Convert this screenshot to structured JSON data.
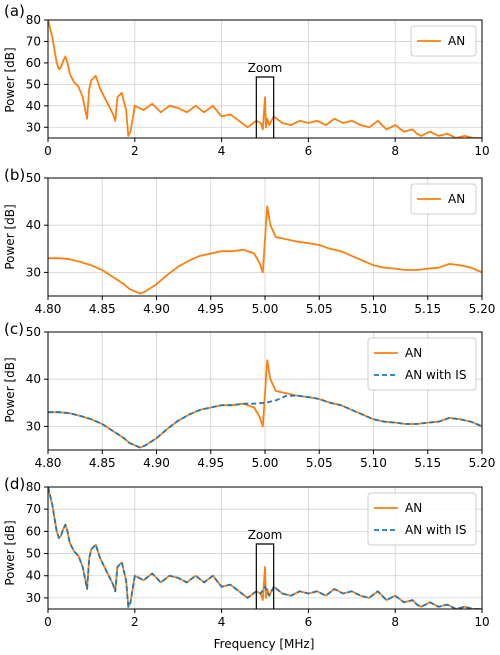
{
  "colors": {
    "an": "#ff7f0e",
    "an_with_is": "#1f77b4",
    "grid": "#d0d0d0",
    "frame": "#000000"
  },
  "chart_data": [
    {
      "panel": "(a)",
      "type": "line",
      "ylabel": "Power [dB]",
      "xlim": [
        0,
        10
      ],
      "ylim": [
        25,
        80
      ],
      "xticks": [
        0,
        2,
        4,
        6,
        8,
        10
      ],
      "xtick_labels": [
        "0",
        "2",
        "4",
        "6",
        "8",
        "10"
      ],
      "yticks": [
        30,
        40,
        50,
        60,
        70,
        80
      ],
      "ytick_labels": [
        "30",
        "40",
        "50",
        "60",
        "70",
        "80"
      ],
      "grid": true,
      "legend": "top-right",
      "annotation": {
        "text": "Zoom",
        "x_range": [
          4.8,
          5.2
        ]
      },
      "series": [
        {
          "name": "AN",
          "style": "solid",
          "color": "#ff7f0e",
          "x": [
            0,
            0.05,
            0.1,
            0.15,
            0.2,
            0.25,
            0.3,
            0.35,
            0.4,
            0.45,
            0.5,
            0.6,
            0.7,
            0.8,
            0.9,
            0.95,
            1.0,
            1.1,
            1.2,
            1.3,
            1.4,
            1.5,
            1.55,
            1.6,
            1.7,
            1.8,
            1.85,
            1.9,
            2.0,
            2.2,
            2.4,
            2.6,
            2.8,
            3.0,
            3.2,
            3.4,
            3.6,
            3.8,
            4.0,
            4.2,
            4.4,
            4.6,
            4.8,
            4.9,
            4.95,
            5.0,
            5.02,
            5.05,
            5.1,
            5.2,
            5.4,
            5.6,
            5.8,
            6.0,
            6.2,
            6.4,
            6.6,
            6.8,
            7.0,
            7.2,
            7.4,
            7.6,
            7.8,
            8.0,
            8.2,
            8.4,
            8.5,
            8.6,
            8.8,
            9.0,
            9.2,
            9.4,
            9.6,
            9.8,
            10.0
          ],
          "y": [
            80,
            76,
            72,
            66,
            60,
            57,
            58,
            61,
            63,
            60,
            55,
            51,
            49,
            44,
            34,
            48,
            52,
            54,
            48,
            44,
            40,
            36,
            33,
            44,
            46,
            38,
            26,
            28,
            40,
            38,
            41,
            37,
            40,
            39,
            37,
            40,
            37,
            40,
            35,
            36,
            33,
            30,
            33,
            32,
            29,
            44,
            30,
            34,
            31,
            35,
            32,
            31,
            33,
            32,
            33,
            31,
            34,
            32,
            33,
            31,
            30,
            33,
            29,
            31,
            28,
            29,
            27,
            26,
            28,
            26,
            27,
            25,
            26,
            25,
            25
          ]
        }
      ]
    },
    {
      "panel": "(b)",
      "type": "line",
      "ylabel": "Power [dB]",
      "xlim": [
        4.8,
        5.2
      ],
      "ylim": [
        25,
        50
      ],
      "xticks": [
        4.8,
        4.85,
        4.9,
        4.95,
        5.0,
        5.05,
        5.1,
        5.15,
        5.2
      ],
      "xtick_labels": [
        "4.80",
        "4.85",
        "4.90",
        "4.95",
        "5.00",
        "5.05",
        "5.10",
        "5.15",
        "5.20"
      ],
      "yticks": [
        30,
        40,
        50
      ],
      "ytick_labels": [
        "30",
        "40",
        "50"
      ],
      "grid": true,
      "legend": "top-right",
      "series": [
        {
          "name": "AN",
          "style": "solid",
          "color": "#ff7f0e",
          "x": [
            4.8,
            4.81,
            4.82,
            4.83,
            4.84,
            4.85,
            4.86,
            4.87,
            4.875,
            4.88,
            4.885,
            4.89,
            4.9,
            4.91,
            4.92,
            4.93,
            4.94,
            4.95,
            4.96,
            4.97,
            4.98,
            4.99,
            4.995,
            4.998,
            5.0,
            5.002,
            5.005,
            5.01,
            5.02,
            5.03,
            5.04,
            5.05,
            5.06,
            5.07,
            5.08,
            5.09,
            5.1,
            5.11,
            5.12,
            5.13,
            5.14,
            5.15,
            5.16,
            5.17,
            5.18,
            5.19,
            5.2
          ],
          "y": [
            33,
            33,
            32.8,
            32.2,
            31.5,
            30.5,
            29,
            27.5,
            26.5,
            26,
            25.5,
            26,
            27.5,
            29.5,
            31.2,
            32.5,
            33.5,
            34,
            34.5,
            34.5,
            34.8,
            34,
            32,
            30,
            37,
            44,
            40,
            37.5,
            37,
            36.5,
            36.2,
            35.8,
            35,
            34.5,
            33.5,
            32.5,
            31.5,
            31,
            30.8,
            30.5,
            30.5,
            30.8,
            31,
            31.8,
            31.5,
            31,
            30
          ]
        }
      ]
    },
    {
      "panel": "(c)",
      "type": "line",
      "ylabel": "Power [dB]",
      "xlim": [
        4.8,
        5.2
      ],
      "ylim": [
        25,
        50
      ],
      "xticks": [
        4.8,
        4.85,
        4.9,
        4.95,
        5.0,
        5.05,
        5.1,
        5.15,
        5.2
      ],
      "xtick_labels": [
        "4.80",
        "4.85",
        "4.90",
        "4.95",
        "5.00",
        "5.05",
        "5.10",
        "5.15",
        "5.20"
      ],
      "yticks": [
        30,
        40,
        50
      ],
      "ytick_labels": [
        "30",
        "40",
        "50"
      ],
      "grid": true,
      "legend": "top-right",
      "series": [
        {
          "name": "AN",
          "style": "solid",
          "color": "#ff7f0e",
          "x": [
            4.8,
            4.81,
            4.82,
            4.83,
            4.84,
            4.85,
            4.86,
            4.87,
            4.875,
            4.88,
            4.885,
            4.89,
            4.9,
            4.91,
            4.92,
            4.93,
            4.94,
            4.95,
            4.96,
            4.97,
            4.98,
            4.99,
            4.995,
            4.998,
            5.0,
            5.002,
            5.005,
            5.01,
            5.02,
            5.03,
            5.04,
            5.05,
            5.06,
            5.07,
            5.08,
            5.09,
            5.1,
            5.11,
            5.12,
            5.13,
            5.14,
            5.15,
            5.16,
            5.17,
            5.18,
            5.19,
            5.2
          ],
          "y": [
            33,
            33,
            32.8,
            32.2,
            31.5,
            30.5,
            29,
            27.5,
            26.5,
            26,
            25.5,
            26,
            27.5,
            29.5,
            31.2,
            32.5,
            33.5,
            34,
            34.5,
            34.5,
            34.8,
            34,
            32,
            30,
            37,
            44,
            40,
            37.5,
            37,
            36.5,
            36.2,
            35.8,
            35,
            34.5,
            33.5,
            32.5,
            31.5,
            31,
            30.8,
            30.5,
            30.5,
            30.8,
            31,
            31.8,
            31.5,
            31,
            30
          ]
        },
        {
          "name": "AN with IS",
          "style": "dashed",
          "color": "#1f77b4",
          "x": [
            4.8,
            4.81,
            4.82,
            4.83,
            4.84,
            4.85,
            4.86,
            4.87,
            4.875,
            4.88,
            4.885,
            4.89,
            4.9,
            4.91,
            4.92,
            4.93,
            4.94,
            4.95,
            4.96,
            4.97,
            4.98,
            4.99,
            5.0,
            5.01,
            5.02,
            5.03,
            5.04,
            5.05,
            5.06,
            5.07,
            5.08,
            5.09,
            5.1,
            5.11,
            5.12,
            5.13,
            5.14,
            5.15,
            5.16,
            5.17,
            5.18,
            5.19,
            5.2
          ],
          "y": [
            33,
            33,
            32.8,
            32.2,
            31.5,
            30.5,
            29,
            27.5,
            26.5,
            26,
            25.5,
            26,
            27.5,
            29.5,
            31.2,
            32.5,
            33.5,
            34,
            34.5,
            34.5,
            34.8,
            34.8,
            35,
            35.5,
            36.5,
            36.5,
            36.2,
            35.8,
            35,
            34.5,
            33.5,
            32.5,
            31.5,
            31,
            30.8,
            30.5,
            30.5,
            30.8,
            31,
            31.8,
            31.5,
            31,
            30
          ]
        }
      ]
    },
    {
      "panel": "(d)",
      "type": "line",
      "ylabel": "Power [dB]",
      "xlabel": "Frequency [MHz]",
      "xlim": [
        0,
        10
      ],
      "ylim": [
        25,
        80
      ],
      "xticks": [
        0,
        2,
        4,
        6,
        8,
        10
      ],
      "xtick_labels": [
        "0",
        "2",
        "4",
        "6",
        "8",
        "10"
      ],
      "yticks": [
        30,
        40,
        50,
        60,
        70,
        80
      ],
      "ytick_labels": [
        "30",
        "40",
        "50",
        "60",
        "70",
        "80"
      ],
      "grid": true,
      "legend": "top-right",
      "annotation": {
        "text": "Zoom",
        "x_range": [
          4.8,
          5.2
        ]
      },
      "series": [
        {
          "name": "AN",
          "style": "solid",
          "color": "#ff7f0e",
          "x": [
            0,
            0.05,
            0.1,
            0.15,
            0.2,
            0.25,
            0.3,
            0.35,
            0.4,
            0.45,
            0.5,
            0.6,
            0.7,
            0.8,
            0.9,
            0.95,
            1.0,
            1.1,
            1.2,
            1.3,
            1.4,
            1.5,
            1.55,
            1.6,
            1.7,
            1.8,
            1.85,
            1.9,
            2.0,
            2.2,
            2.4,
            2.6,
            2.8,
            3.0,
            3.2,
            3.4,
            3.6,
            3.8,
            4.0,
            4.2,
            4.4,
            4.6,
            4.8,
            4.9,
            4.95,
            5.0,
            5.02,
            5.05,
            5.1,
            5.2,
            5.4,
            5.6,
            5.8,
            6.0,
            6.2,
            6.4,
            6.6,
            6.8,
            7.0,
            7.2,
            7.4,
            7.6,
            7.8,
            8.0,
            8.2,
            8.4,
            8.5,
            8.6,
            8.8,
            9.0,
            9.2,
            9.4,
            9.6,
            9.8,
            10.0
          ],
          "y": [
            80,
            76,
            72,
            66,
            60,
            57,
            58,
            61,
            63,
            60,
            55,
            51,
            49,
            44,
            34,
            48,
            52,
            54,
            48,
            44,
            40,
            36,
            33,
            44,
            46,
            38,
            26,
            28,
            40,
            38,
            41,
            37,
            40,
            39,
            37,
            40,
            37,
            40,
            35,
            36,
            33,
            30,
            33,
            32,
            29,
            44,
            30,
            34,
            31,
            35,
            32,
            31,
            33,
            32,
            33,
            31,
            34,
            32,
            33,
            31,
            30,
            33,
            29,
            31,
            28,
            29,
            27,
            26,
            28,
            26,
            27,
            25,
            26,
            25,
            25
          ]
        },
        {
          "name": "AN with IS",
          "style": "dashed",
          "color": "#1f77b4",
          "x": [
            0,
            0.05,
            0.1,
            0.15,
            0.2,
            0.25,
            0.3,
            0.35,
            0.4,
            0.45,
            0.5,
            0.6,
            0.7,
            0.8,
            0.9,
            0.95,
            1.0,
            1.1,
            1.2,
            1.3,
            1.4,
            1.5,
            1.55,
            1.6,
            1.7,
            1.8,
            1.85,
            1.9,
            2.0,
            2.2,
            2.4,
            2.6,
            2.8,
            3.0,
            3.2,
            3.4,
            3.6,
            3.8,
            4.0,
            4.2,
            4.4,
            4.6,
            4.8,
            4.9,
            5.0,
            5.1,
            5.2,
            5.4,
            5.6,
            5.8,
            6.0,
            6.2,
            6.4,
            6.6,
            6.8,
            7.0,
            7.2,
            7.4,
            7.6,
            7.8,
            8.0,
            8.2,
            8.4,
            8.5,
            8.6,
            8.8,
            9.0,
            9.2,
            9.4,
            9.6,
            9.8,
            10.0
          ],
          "y": [
            80,
            76,
            72,
            66,
            60,
            57,
            58,
            61,
            63,
            60,
            55,
            51,
            49,
            44,
            34,
            48,
            52,
            54,
            48,
            44,
            40,
            36,
            33,
            44,
            46,
            38,
            26,
            28,
            40,
            38,
            41,
            37,
            40,
            39,
            37,
            40,
            37,
            40,
            35,
            36,
            33,
            30,
            33,
            32,
            35,
            31,
            35,
            32,
            31,
            33,
            32,
            33,
            31,
            34,
            32,
            33,
            31,
            30,
            33,
            29,
            31,
            28,
            29,
            27,
            26,
            28,
            26,
            27,
            25,
            26,
            25,
            25
          ]
        }
      ]
    }
  ]
}
